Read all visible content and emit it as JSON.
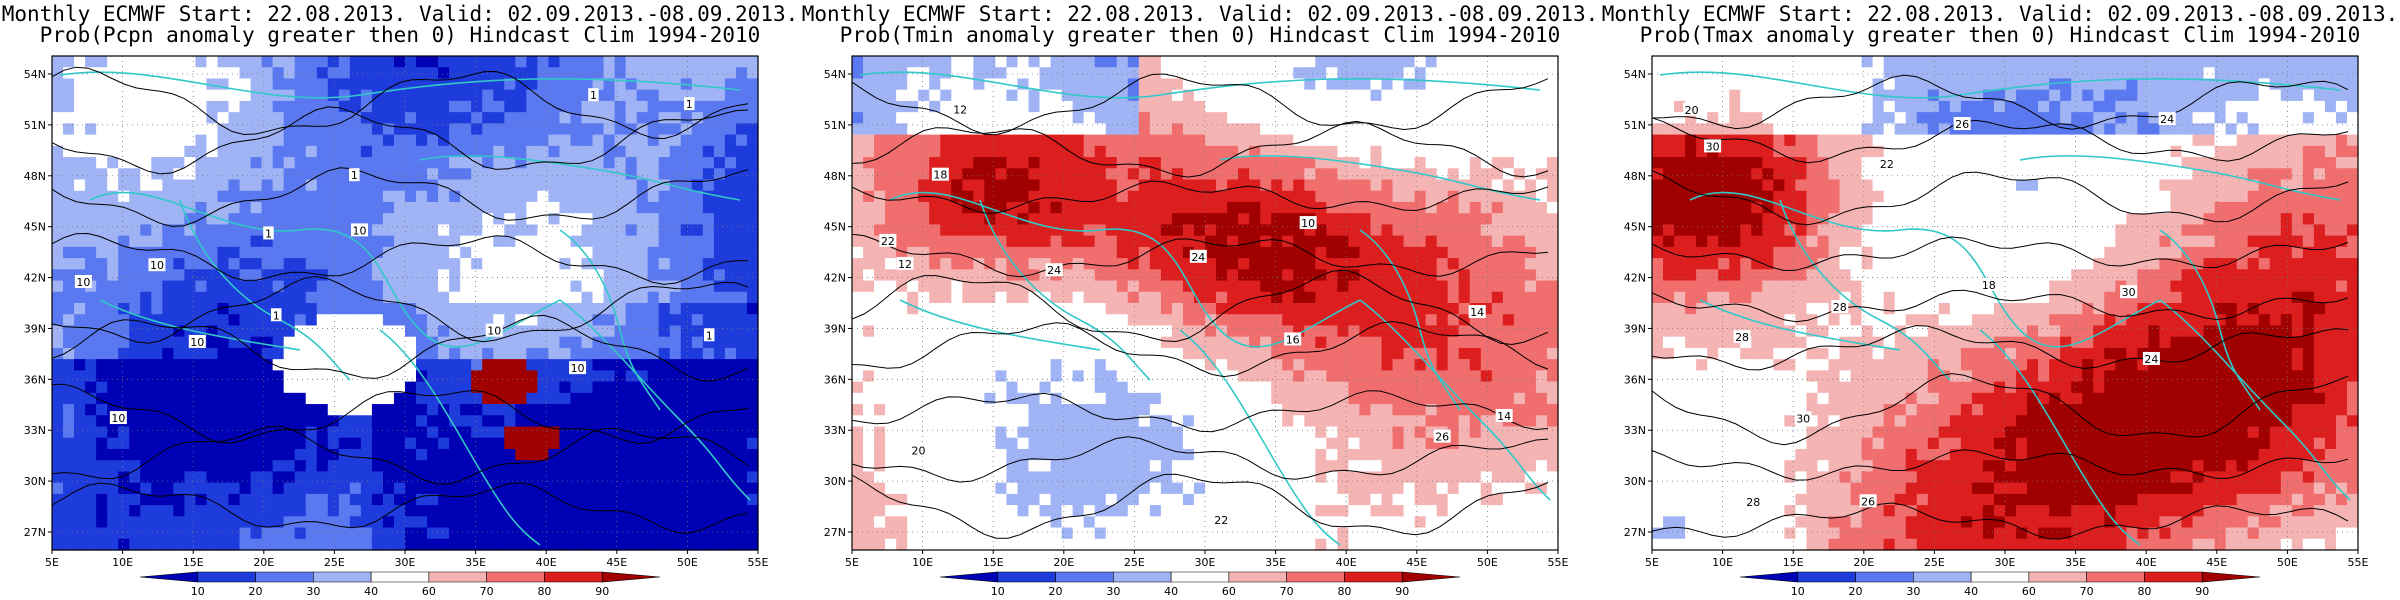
{
  "panels": [
    {
      "title_line1": "Monthly ECMWF Start: 22.08.2013. Valid: 02.09.2013.-08.09.2013.",
      "title_line2": "Prob(Pcpn anomaly greater then 0) Hindcast Clim 1994-2010",
      "variable": "Pcpn",
      "dominant": "low",
      "contour_labels": [
        "10",
        "10",
        "10",
        "10",
        "10",
        "10",
        "10",
        "1",
        "1",
        "1",
        "1",
        "1",
        "1"
      ]
    },
    {
      "title_line1": "Monthly ECMWF Start: 22.08.2013. Valid: 02.09.2013.-08.09.2013.",
      "title_line2": "Prob(Tmin anomaly greater then 0) Hindcast Clim 1994-2010",
      "variable": "Tmin",
      "dominant": "high",
      "contour_labels": [
        "12",
        "12",
        "10",
        "14",
        "14",
        "16",
        "18",
        "24",
        "22",
        "24",
        "26",
        "22",
        "20"
      ]
    },
    {
      "title_line1": "Monthly ECMWF Start: 22.08.2013. Valid: 02.09.2013.-08.09.2013.",
      "title_line2": "Prob(Tmax anomaly greater then 0) Hindcast Clim 1994-2010",
      "variable": "Tmax",
      "dominant": "high",
      "contour_labels": [
        "18",
        "20",
        "22",
        "24",
        "26",
        "28",
        "24",
        "28",
        "30",
        "30",
        "26",
        "28",
        "30"
      ]
    }
  ],
  "lat_ticks": [
    "54N",
    "51N",
    "48N",
    "45N",
    "42N",
    "39N",
    "36N",
    "33N",
    "30N",
    "27N"
  ],
  "lon_ticks": [
    "5E",
    "10E",
    "15E",
    "20E",
    "25E",
    "30E",
    "35E",
    "40E",
    "45E",
    "50E",
    "55E"
  ],
  "colorbar": {
    "labels": [
      "10",
      "20",
      "30",
      "40",
      "60",
      "70",
      "80",
      "90"
    ],
    "colors": [
      "#0000b4",
      "#1e3cdc",
      "#5a78f0",
      "#a0b4f5",
      "#ffffff",
      "#f5b4b4",
      "#f06e6e",
      "#dc1e1e",
      "#a00000"
    ]
  },
  "colors": {
    "coast": "#30c8c8",
    "contour": "#000000",
    "frame": "#000000"
  }
}
